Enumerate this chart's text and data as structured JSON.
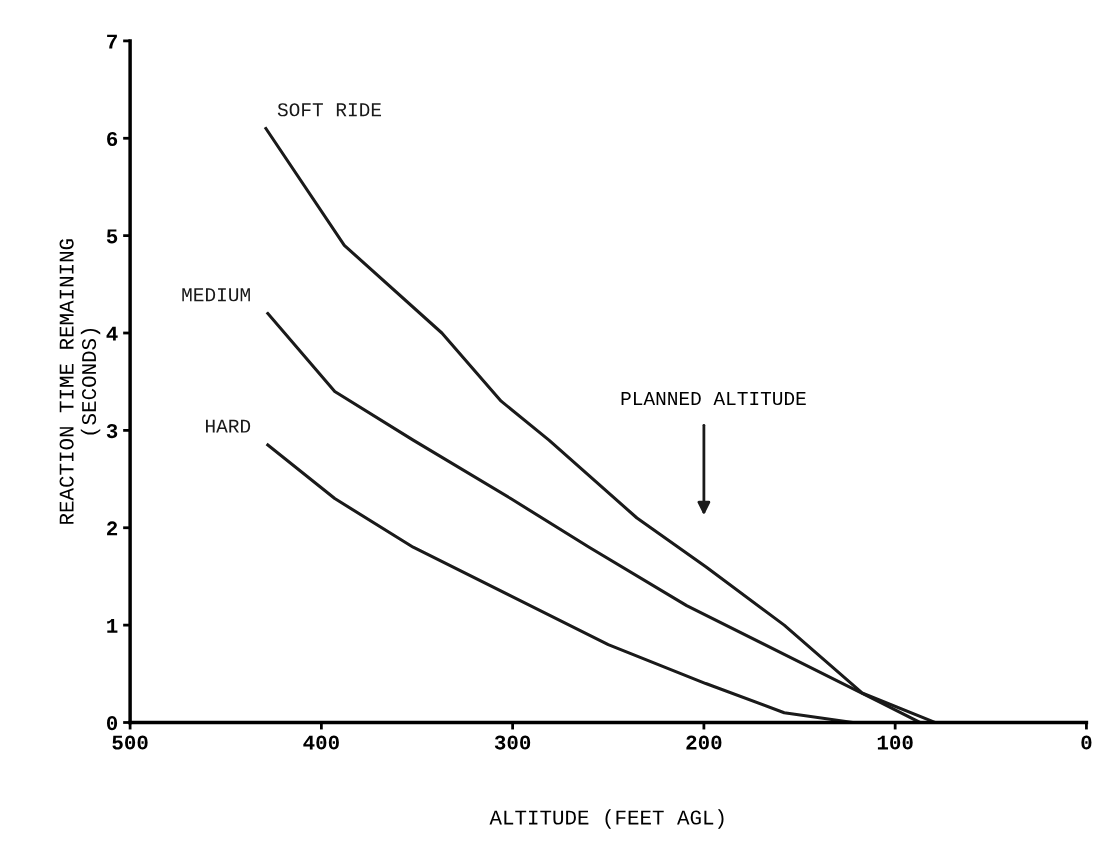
{
  "chart_data": {
    "type": "line",
    "xlabel": "ALTITUDE (FEET AGL)",
    "ylabel": "REACTION TIME REMAINING\n(SECONDS)",
    "xlim": [
      500,
      0
    ],
    "xticks": [
      500,
      400,
      300,
      200,
      100,
      0
    ],
    "ylim": [
      0,
      7
    ],
    "yticks": [
      0,
      1,
      2,
      3,
      4,
      5,
      6,
      7
    ],
    "grid": false,
    "legend": false,
    "marker": "none",
    "line_style": "solid",
    "series": [
      {
        "name": "SOFT RIDE",
        "color": "#1a1a1a",
        "x": [
          429,
          388,
          337,
          306,
          281,
          235,
          199,
          158,
          117,
          79
        ],
        "values": [
          6.1,
          4.9,
          4.0,
          3.3,
          2.9,
          2.1,
          1.6,
          1.0,
          0.3,
          0
        ]
      },
      {
        "name": "MEDIUM",
        "color": "#1a1a1a",
        "x": [
          428,
          393,
          352,
          301,
          260,
          209,
          158,
          107,
          87
        ],
        "values": [
          4.2,
          3.4,
          2.9,
          2.3,
          1.8,
          1.2,
          0.7,
          0.2,
          0
        ]
      },
      {
        "name": "HARD",
        "color": "#1a1a1a",
        "x": [
          428,
          393,
          352,
          301,
          250,
          199,
          158,
          122
        ],
        "values": [
          2.85,
          2.3,
          1.8,
          1.3,
          0.8,
          0.4,
          0.1,
          0
        ]
      }
    ],
    "annotations": [
      "PLANNED ALTITUDE"
    ]
  }
}
